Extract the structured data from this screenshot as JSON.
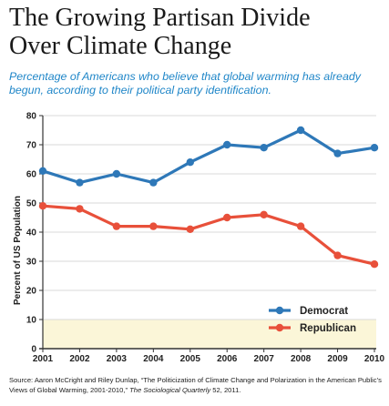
{
  "title": {
    "line1": "The Growing Partisan Divide",
    "line2": "Over Climate Change"
  },
  "subtitle": "Percentage of Americans who believe that global warming has already begun, according to their political party identification.",
  "source": {
    "prefix": "Source: Aaron McCright and Riley Dunlap, “The Politicization of Climate Change and Polarization in the American Public’s Views of Global Warming, 2001-2010,” ",
    "journal": "The Sociological Quarterly",
    "suffix": " 52, 2011."
  },
  "chart_data": {
    "type": "line",
    "title": "The Growing Partisan Divide Over Climate Change",
    "xlabel": "",
    "ylabel": "Percent of US Population",
    "ylim": [
      0,
      80
    ],
    "yticks": [
      0,
      10,
      20,
      30,
      40,
      50,
      60,
      70,
      80
    ],
    "x": [
      "2001",
      "2002",
      "2003",
      "2004",
      "2005",
      "2006",
      "2007",
      "2008",
      "2009",
      "2010"
    ],
    "series": [
      {
        "name": "Democrat",
        "color": "#2e78b8",
        "values": [
          61,
          57,
          60,
          57,
          64,
          70,
          69,
          75,
          67,
          69
        ]
      },
      {
        "name": "Republican",
        "color": "#e8503a",
        "values": [
          49,
          48,
          42,
          42,
          41,
          45,
          46,
          42,
          32,
          29
        ]
      }
    ],
    "grid": "horizontal",
    "legend": "bottom-right",
    "axis_band_color": "#fbf6d8"
  }
}
